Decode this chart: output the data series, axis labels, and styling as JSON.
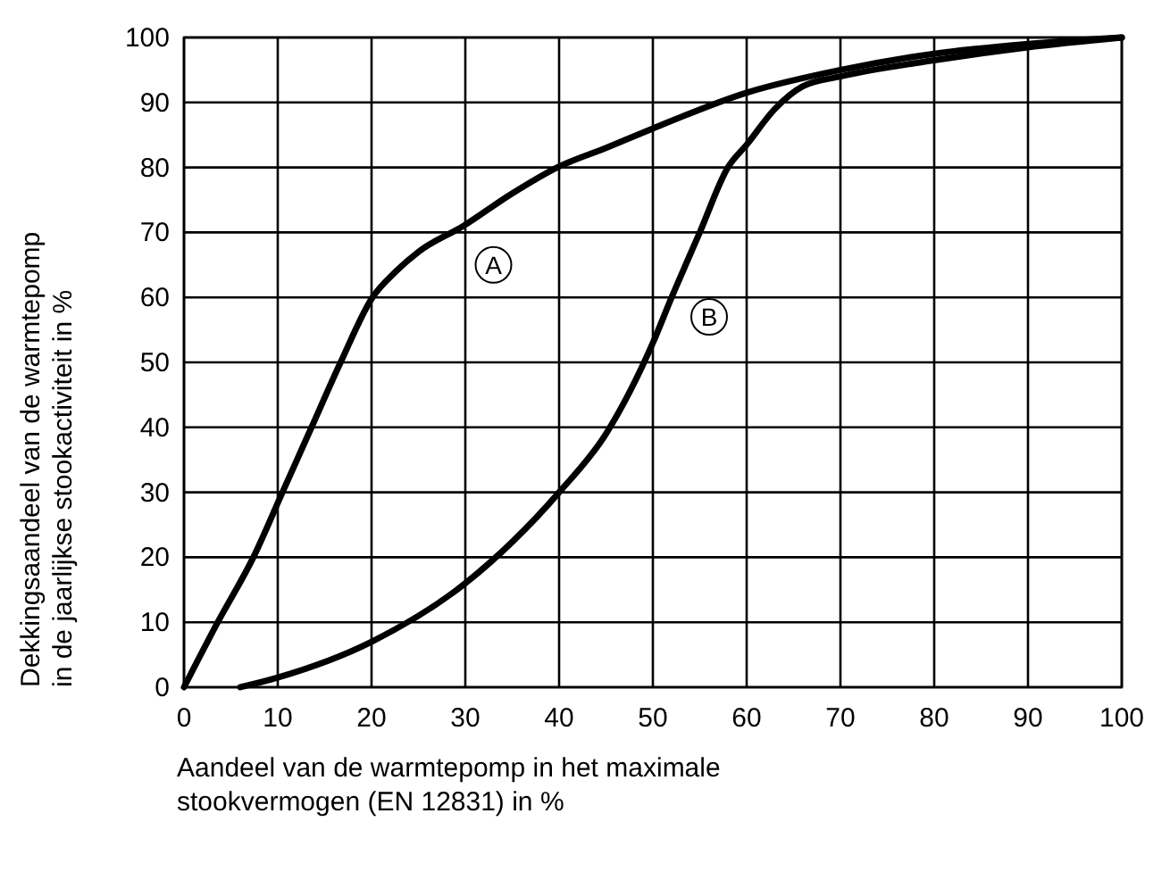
{
  "chart_data": {
    "type": "line",
    "xlabel": "Aandeel van de warmtepomp in het maximale\nstookvermogen (EN 12831) in %",
    "ylabel": "Dekkingsaandeel van de warmtepomp\nin de jaarlijkse stookactiviteit in %",
    "xlim": [
      0,
      100
    ],
    "ylim": [
      0,
      100
    ],
    "xticks": [
      0,
      10,
      20,
      30,
      40,
      50,
      60,
      70,
      80,
      90,
      100
    ],
    "yticks": [
      0,
      10,
      20,
      30,
      40,
      50,
      60,
      70,
      80,
      90,
      100
    ],
    "grid": true,
    "marker": "none",
    "line_style": "solid",
    "series": [
      {
        "color": "#000000",
        "x": [
          0,
          3.6,
          7.4,
          10.5,
          13.6,
          16.7,
          20.1,
          22.6,
          25,
          29.8,
          35,
          39.8,
          45,
          50,
          60,
          70,
          80,
          90,
          100
        ],
        "values": [
          0,
          10,
          20,
          30,
          40,
          50,
          60,
          64,
          67,
          71,
          76,
          80,
          83,
          86,
          91.5,
          95,
          97.5,
          99,
          100
        ]
      },
      {
        "color": "#000000",
        "x": [
          6,
          10,
          20,
          30,
          40,
          45,
          50,
          52,
          55,
          58,
          60,
          63,
          66,
          70,
          80,
          90,
          100
        ],
        "values": [
          0,
          1.5,
          7,
          16,
          30,
          39,
          53,
          60,
          70,
          80,
          83.5,
          89,
          92.5,
          94,
          96.5,
          98.5,
          100
        ]
      }
    ],
    "annotations": [
      {
        "text": "A",
        "x": 33,
        "y": 65
      },
      {
        "text": "B",
        "x": 56,
        "y": 57
      }
    ]
  }
}
